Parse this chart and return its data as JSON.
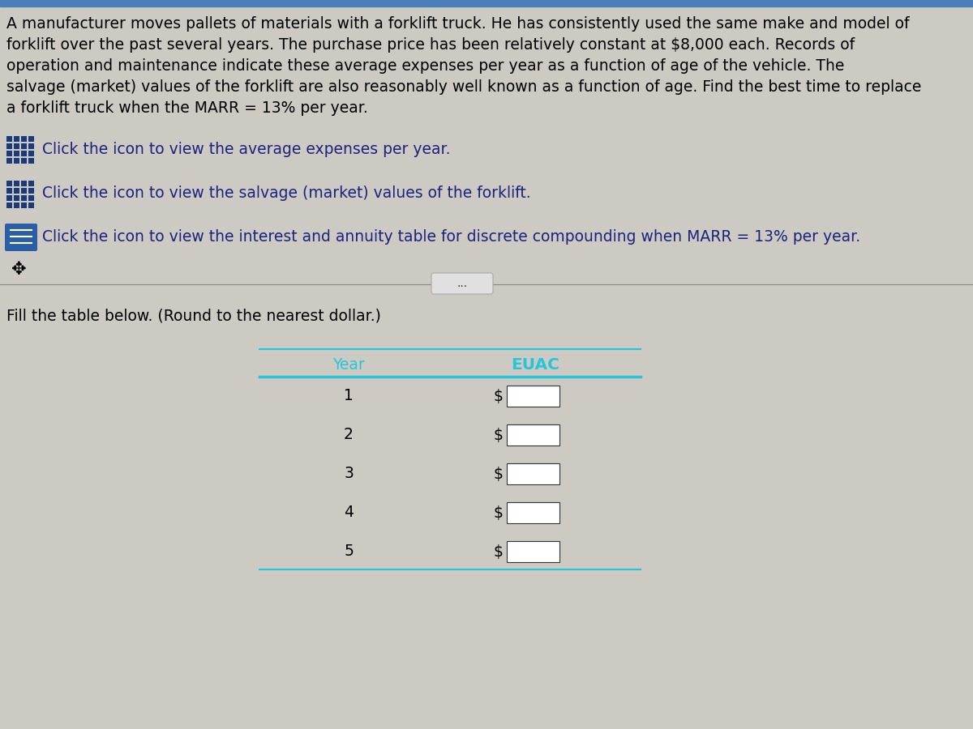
{
  "background_color": "#cdc9c3",
  "top_bar_color": "#5080b0",
  "paragraph_text_lines": [
    "A manufacturer moves pallets of materials with a forklift truck. He has consistently used the same make and model of",
    "forklift over the past several years. The purchase price has been relatively constant at $8,000 each. Records of",
    "operation and maintenance indicate these average expenses per year as a function of age of the vehicle. The",
    "salvage (market) values of the forklift are also reasonably well known as a function of age. Find the best time to replace",
    "a forklift truck when the MARR = 13% per year."
  ],
  "icon1_color": "#1a3a7a",
  "icon2_color": "#1a3a7a",
  "icon3_bg": "#2a5fa8",
  "icon3_line": "#ffffff",
  "link1_text": "Click the icon to view the average expenses per year.",
  "link2_text": "Click the icon to view the salvage (market) values of the forklift.",
  "link3_text": "Click the icon to view the interest and annuity table for discrete compounding when MARR = 13% per year.",
  "link_color": "#1a237e",
  "fill_text": "Fill the table below. (Round to the nearest dollar.)",
  "table_header_color": "#26c6da",
  "table_col1": "Year",
  "table_col2": "EUAC",
  "table_rows": [
    1,
    2,
    3,
    4,
    5
  ],
  "dollar_sign": "$",
  "separator_line_color": "#26c6da",
  "top_stripe_color": "#4a7fba",
  "ellipsis": "...",
  "text_color": "#000000",
  "para_fontsize": 13.5,
  "link_fontsize": 13.5,
  "fill_fontsize": 13.5,
  "table_fontsize": 13.5
}
